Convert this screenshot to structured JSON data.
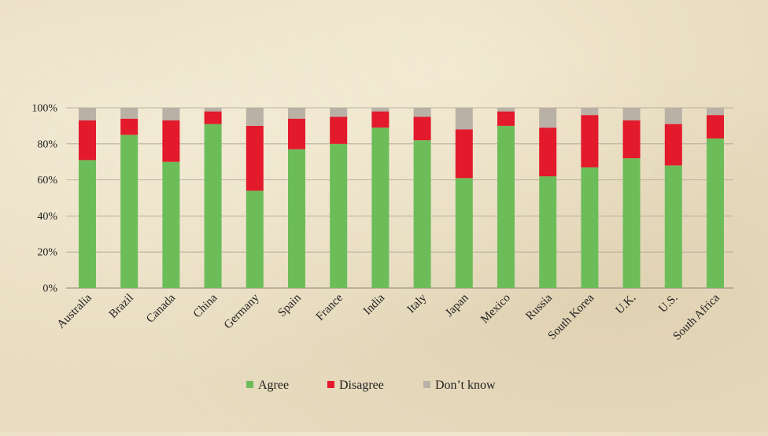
{
  "chart_data": {
    "type": "bar",
    "stacked": true,
    "categories": [
      "Australia",
      "Brazil",
      "Canada",
      "China",
      "Germany",
      "Spain",
      "France",
      "India",
      "Italy",
      "Japan",
      "Mexico",
      "Russia",
      "South Korea",
      "U.K.",
      "U.S.",
      "South Africa"
    ],
    "series": [
      {
        "name": "Agree",
        "color": "#6cbd5a",
        "values": [
          71,
          85,
          70,
          91,
          54,
          77,
          80,
          89,
          82,
          61,
          90,
          62,
          67,
          72,
          68,
          83
        ]
      },
      {
        "name": "Disagree",
        "color": "#e3192c",
        "values": [
          22,
          9,
          23,
          7,
          36,
          17,
          15,
          9,
          13,
          27,
          8,
          27,
          29,
          21,
          23,
          13
        ]
      },
      {
        "name": "Don’t know",
        "color": "#b9b1a6",
        "values": [
          7,
          6,
          7,
          2,
          10,
          6,
          5,
          2,
          5,
          12,
          2,
          11,
          4,
          7,
          9,
          4
        ]
      }
    ],
    "y_ticks": [
      "0%",
      "20%",
      "40%",
      "60%",
      "80%",
      "100%"
    ],
    "ylim": [
      0,
      100
    ],
    "grid": true,
    "legend_position": "bottom"
  }
}
